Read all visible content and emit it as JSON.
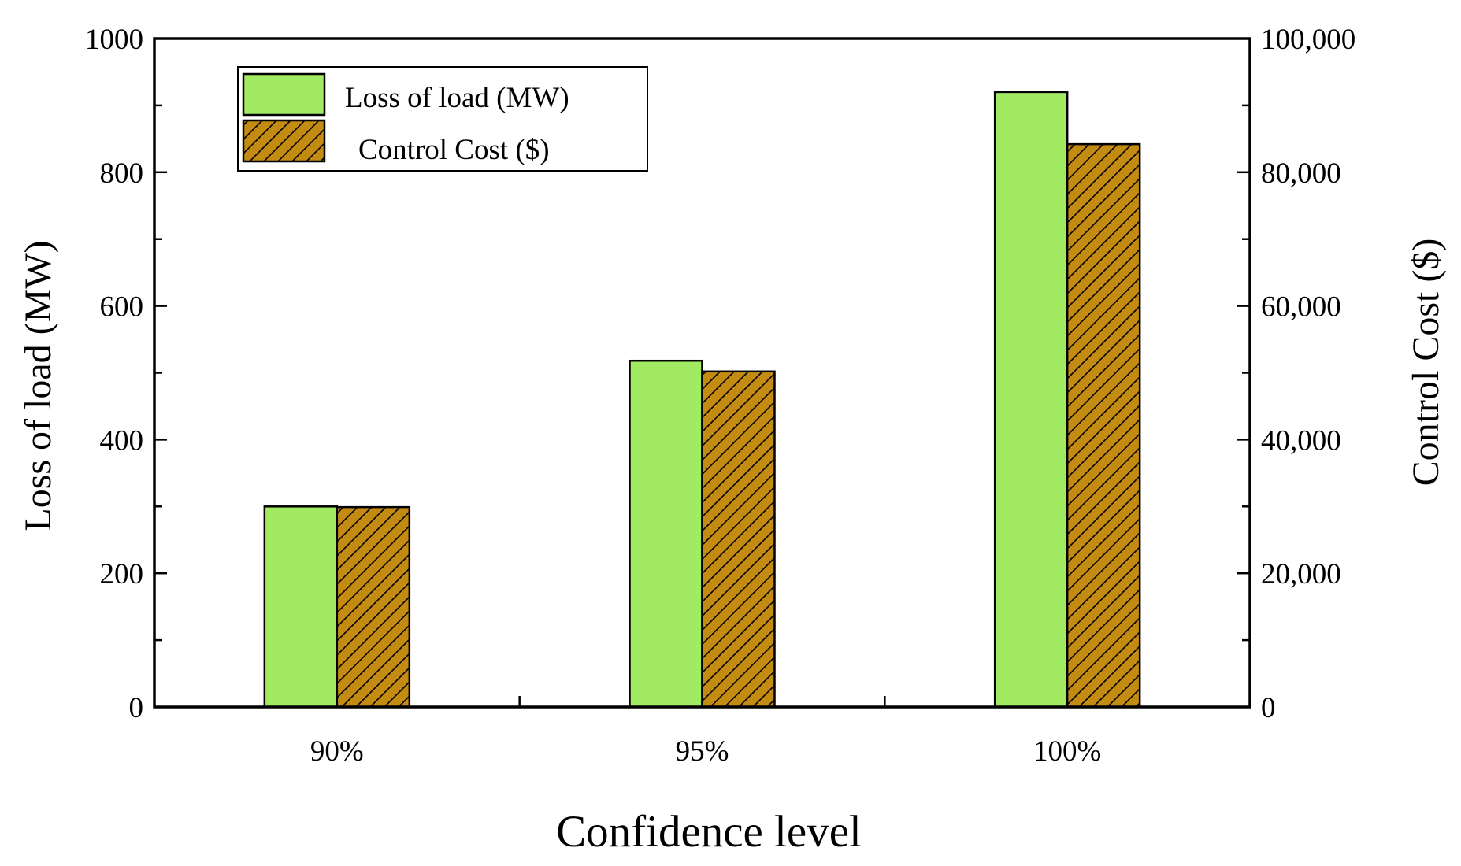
{
  "chart_data": {
    "type": "bar",
    "title": "",
    "xlabel": "Confidence level",
    "ylabel": "Loss of load (MW)",
    "y2label": "Control Cost ($)",
    "categories": [
      "90%",
      "95%",
      "100%"
    ],
    "ylim": [
      0,
      1000
    ],
    "y2lim": [
      0,
      100000
    ],
    "y_ticks": [
      0,
      200,
      400,
      600,
      800,
      1000
    ],
    "y_tick_labels": [
      "0",
      "200",
      "400",
      "600",
      "800",
      "1000"
    ],
    "y2_ticks": [
      0,
      20000,
      40000,
      60000,
      80000,
      100000
    ],
    "y2_tick_labels": [
      "0",
      "20,000",
      "40,000",
      "60,000",
      "80,000",
      "100,000"
    ],
    "grid": false,
    "legend_position": "top-left",
    "series": [
      {
        "name": "Loss of load (MW)",
        "axis": "left",
        "color": "#a2ea62",
        "pattern": "solid",
        "values": [
          300,
          518,
          920
        ]
      },
      {
        "name": "Control Cost ($)",
        "axis": "right",
        "color": "#c48b12",
        "pattern": "hatch",
        "values": [
          29900,
          50200,
          84200
        ]
      }
    ]
  }
}
